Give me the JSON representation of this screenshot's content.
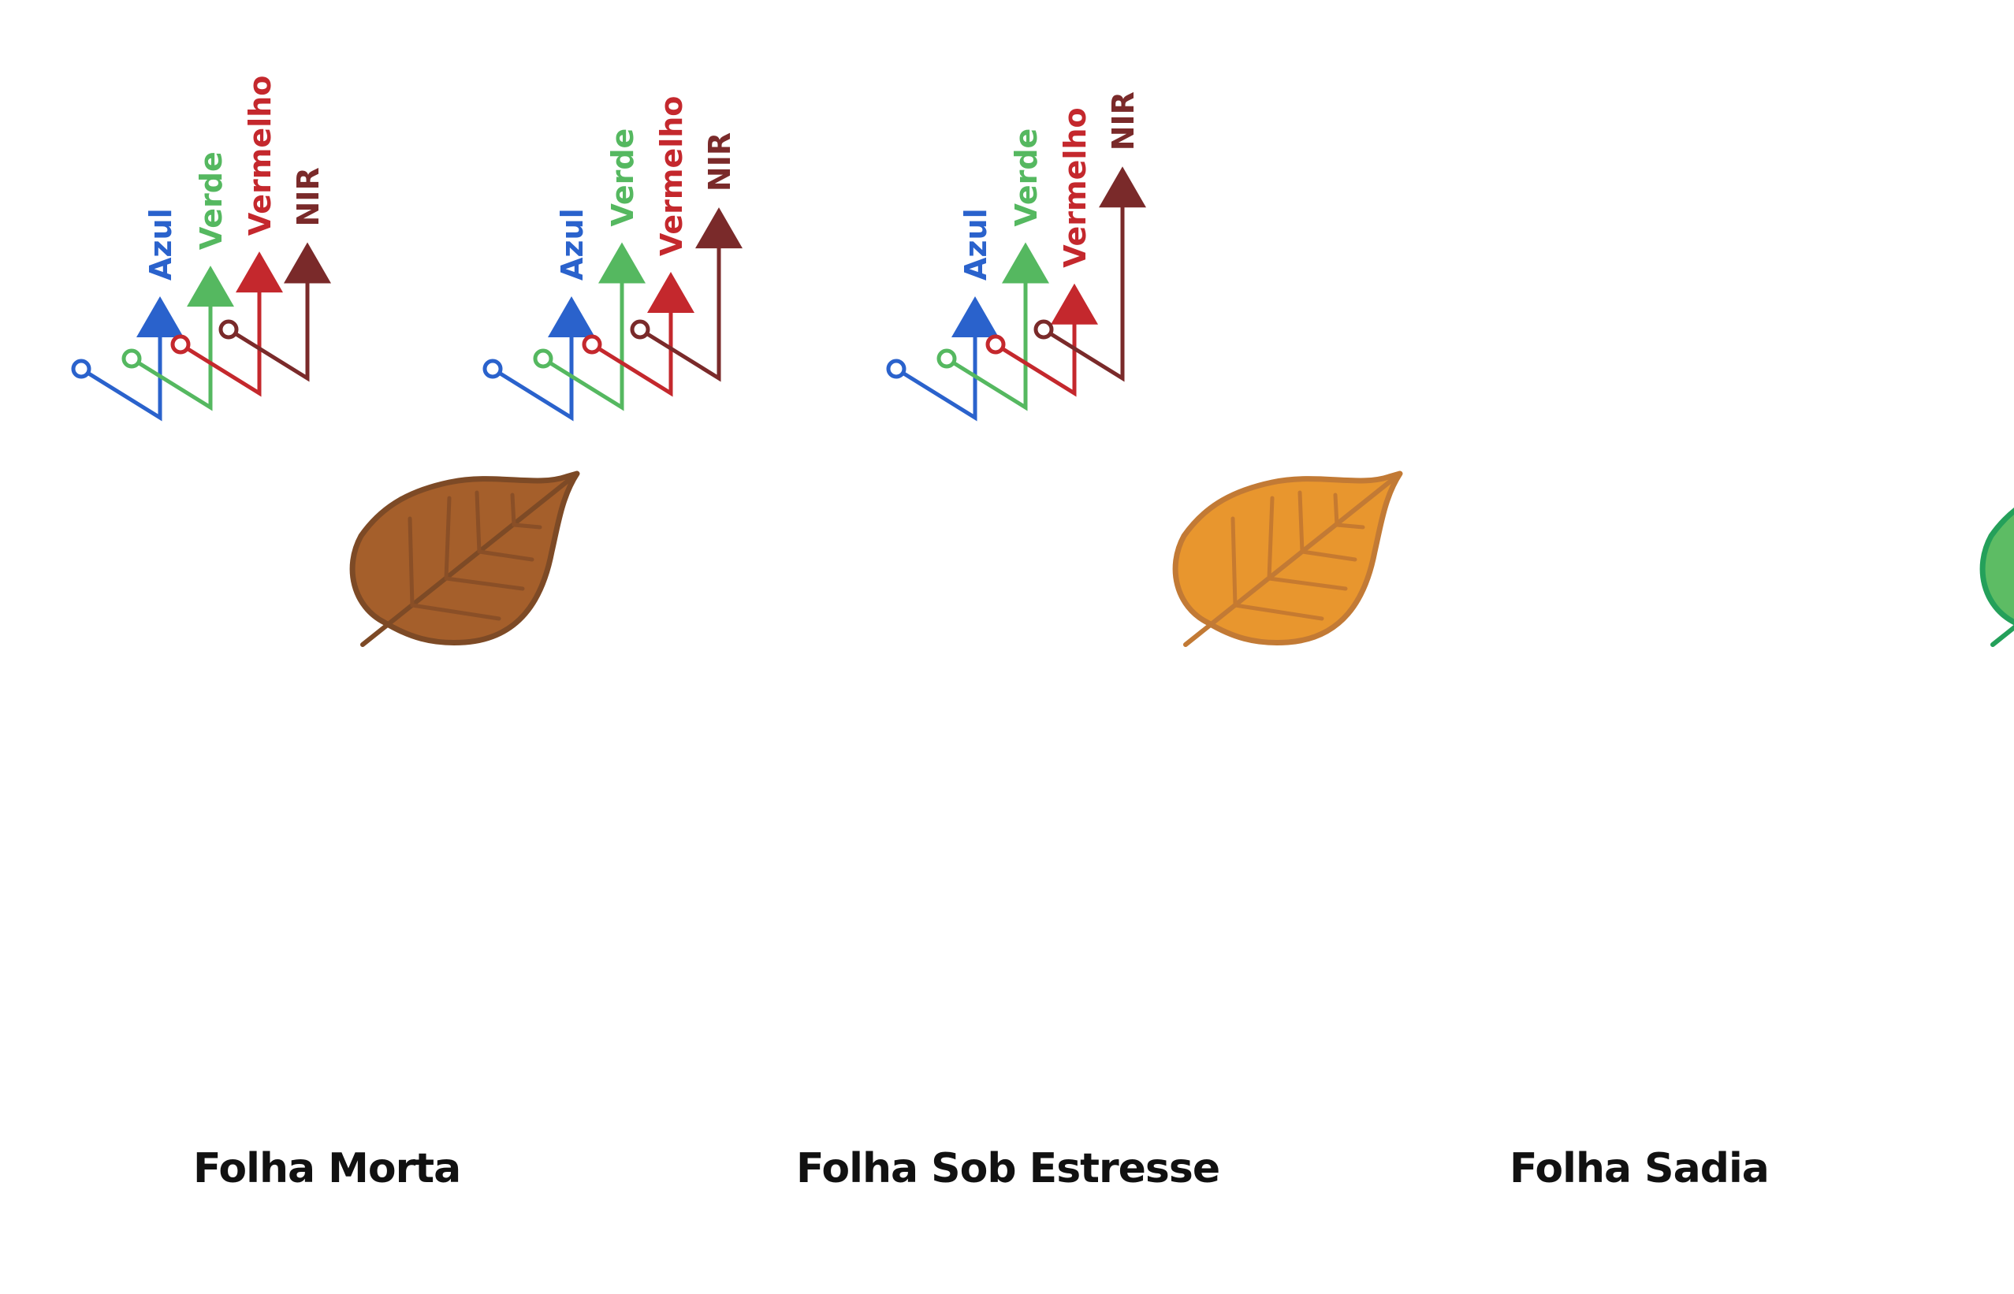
{
  "bands": [
    {
      "key": "blue",
      "label": "Azul",
      "color": "#2A62CC"
    },
    {
      "key": "green",
      "label": "Verde",
      "color": "#55B860"
    },
    {
      "key": "red",
      "label": "Vermelho",
      "color": "#C4282D"
    },
    {
      "key": "nir",
      "label": "NIR",
      "color": "#7A2A2A"
    }
  ],
  "panels": [
    {
      "caption": "Folha Morta",
      "reflectance": {
        "blue": 0.4,
        "green": 0.47,
        "red": 0.47,
        "nir": 0.45
      },
      "leaf": {
        "fill": "#A55F2B",
        "stroke": "#7D4A26",
        "vein": "#8A4F27"
      }
    },
    {
      "caption": "Folha Sob Estresse",
      "reflectance": {
        "blue": 0.4,
        "green": 0.55,
        "red": 0.4,
        "nir": 0.57
      },
      "leaf": {
        "fill": "#E8962E",
        "stroke": "#C27A35",
        "vein": "#C67A30"
      }
    },
    {
      "caption": "Folha Sadia",
      "reflectance": {
        "blue": 0.4,
        "green": 0.55,
        "red": 0.36,
        "nir": 0.71
      },
      "leaf": {
        "fill": "#5DBC64",
        "stroke": "#24A05A",
        "vein": "#2C9E57"
      }
    }
  ]
}
